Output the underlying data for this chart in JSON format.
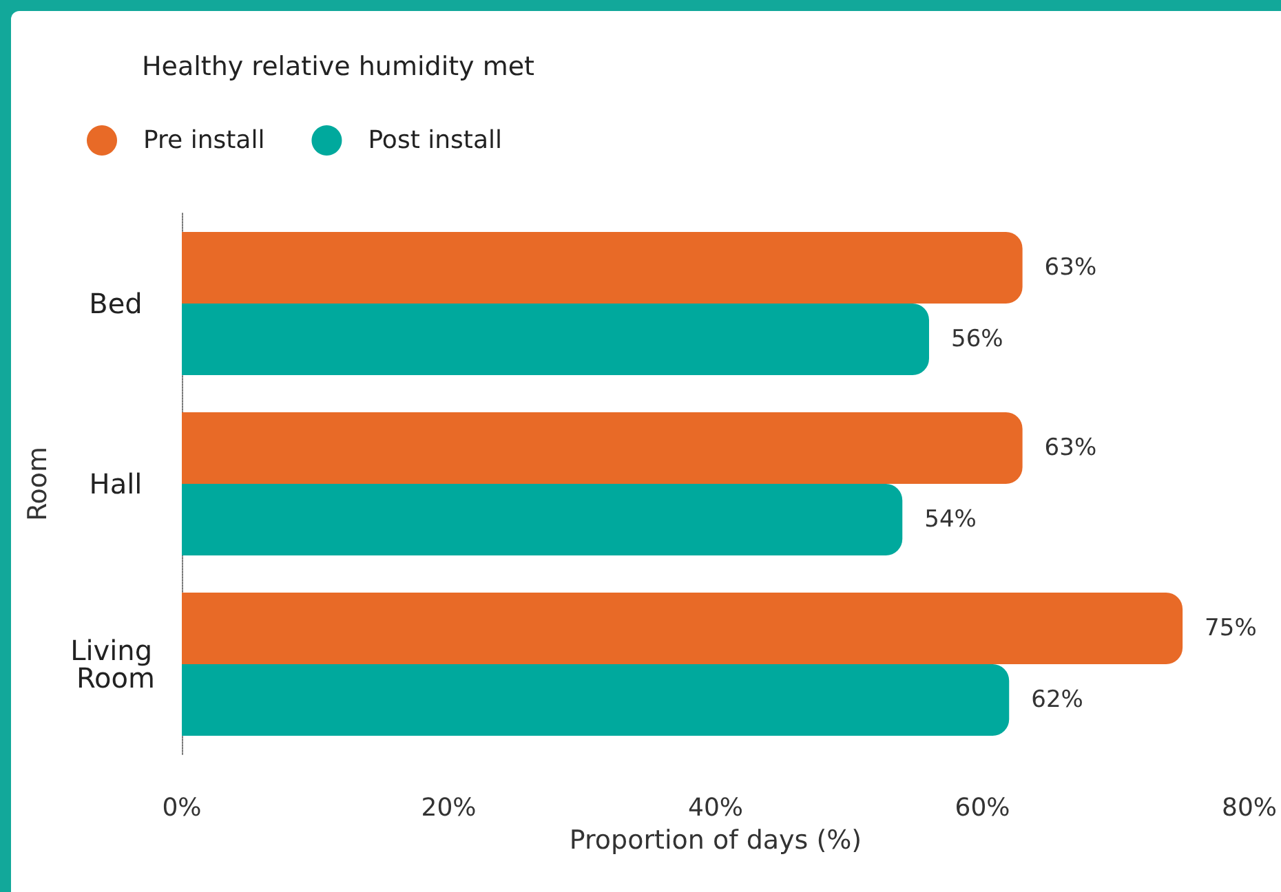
{
  "chart_data": {
    "type": "bar",
    "orientation": "horizontal",
    "title": "Healthy relative humidity met",
    "xlabel": "Proportion of days (%)",
    "ylabel": "Room",
    "categories": [
      "Bed",
      "Hall",
      "Living Room"
    ],
    "series": [
      {
        "name": "Pre install",
        "color": "#e86a27",
        "values": [
          63,
          63,
          75
        ],
        "value_labels": [
          "63%",
          "63%",
          "75%"
        ]
      },
      {
        "name": "Post install",
        "color": "#00a99d",
        "values": [
          56,
          54,
          62
        ],
        "value_labels": [
          "56%",
          "54%",
          "62%"
        ]
      }
    ],
    "xlim": [
      0,
      80
    ],
    "xticks": [
      {
        "value": 0,
        "label": "0%"
      },
      {
        "value": 20,
        "label": "20%"
      },
      {
        "value": 40,
        "label": "40%"
      },
      {
        "value": 60,
        "label": "60%"
      },
      {
        "value": 80,
        "label": "80%"
      }
    ],
    "grid": false,
    "legend": "top left"
  }
}
